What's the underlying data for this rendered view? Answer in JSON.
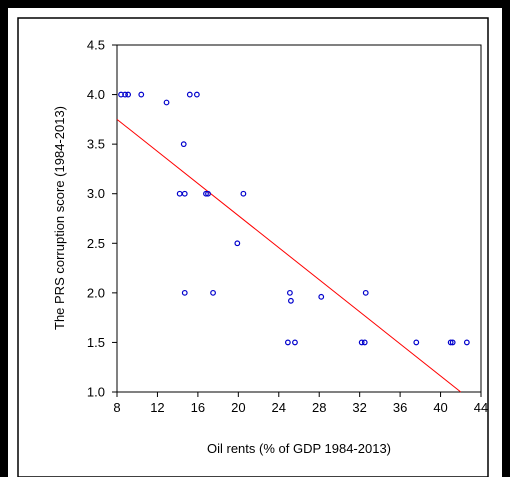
{
  "chart_data": {
    "type": "scatter",
    "title": "",
    "xlabel": "Oil rents (% of GDP 1984-2013)",
    "ylabel": "The PRS corruption score (1984-2013)",
    "xlim": [
      8,
      44
    ],
    "ylim": [
      1.0,
      4.5
    ],
    "xticks": [
      8,
      12,
      16,
      20,
      24,
      28,
      32,
      36,
      40,
      44
    ],
    "yticks": [
      1.0,
      1.5,
      2.0,
      2.5,
      3.0,
      3.5,
      4.0,
      4.5
    ],
    "ytick_labels": [
      "1.0",
      "1.5",
      "2.0",
      "2.5",
      "3.0",
      "3.5",
      "4.0",
      "4.5"
    ],
    "grid": false,
    "points": [
      {
        "x": 8.4,
        "y": 4.0
      },
      {
        "x": 8.8,
        "y": 4.0
      },
      {
        "x": 9.1,
        "y": 4.0
      },
      {
        "x": 10.4,
        "y": 4.0
      },
      {
        "x": 12.9,
        "y": 3.92
      },
      {
        "x": 15.2,
        "y": 4.0
      },
      {
        "x": 15.9,
        "y": 4.0
      },
      {
        "x": 14.6,
        "y": 3.5
      },
      {
        "x": 14.2,
        "y": 3.0
      },
      {
        "x": 14.7,
        "y": 3.0
      },
      {
        "x": 16.8,
        "y": 3.0
      },
      {
        "x": 17.0,
        "y": 3.0
      },
      {
        "x": 20.5,
        "y": 3.0
      },
      {
        "x": 19.9,
        "y": 2.5
      },
      {
        "x": 14.7,
        "y": 2.0
      },
      {
        "x": 17.5,
        "y": 2.0
      },
      {
        "x": 25.1,
        "y": 2.0
      },
      {
        "x": 25.2,
        "y": 1.92
      },
      {
        "x": 28.2,
        "y": 1.96
      },
      {
        "x": 32.6,
        "y": 2.0
      },
      {
        "x": 24.9,
        "y": 1.5
      },
      {
        "x": 25.6,
        "y": 1.5
      },
      {
        "x": 32.2,
        "y": 1.5
      },
      {
        "x": 32.5,
        "y": 1.5
      },
      {
        "x": 37.6,
        "y": 1.5
      },
      {
        "x": 41.0,
        "y": 1.5
      },
      {
        "x": 41.2,
        "y": 1.5
      },
      {
        "x": 42.6,
        "y": 1.5
      }
    ],
    "fit_line": {
      "x1": 8,
      "y1": 3.75,
      "x2": 42,
      "y2": 1.0
    },
    "colors": {
      "points": "#0000cc",
      "fit_line": "#ff0000",
      "axes": "#000000"
    }
  }
}
